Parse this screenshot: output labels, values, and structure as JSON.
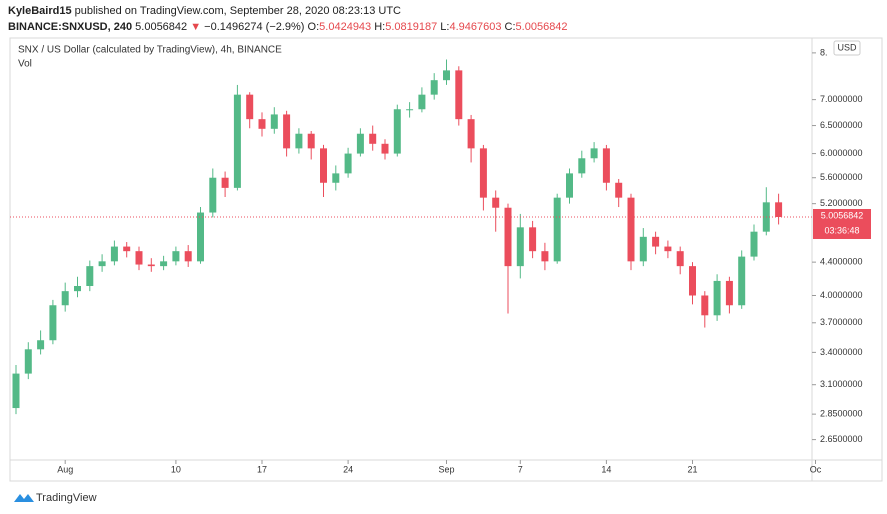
{
  "header": {
    "author": "KyleBaird15",
    "published": " published on TradingView.com, September 28, 2020 08:23:13 UTC",
    "symbol": "BINANCE:SNXUSD, 240",
    "last": "5.0056842",
    "arrow": "▼",
    "change": "−0.1496274 (−2.9%)",
    "ohlc": [
      {
        "label": "O:",
        "value": "5.0424943"
      },
      {
        "label": "H:",
        "value": "5.0819187"
      },
      {
        "label": "L:",
        "value": "4.9467603"
      },
      {
        "label": "C:",
        "value": "5.0056842"
      }
    ]
  },
  "chart_data": {
    "type": "candlestick",
    "title": "SNX / US Dollar (calculated by TradingView), 4h, BINANCE",
    "subtitle": "Vol",
    "currency": "USD",
    "countdown": "03:36:48",
    "log": true,
    "grid": false,
    "up_color": "#53b987",
    "down_color": "#eb4d5c",
    "categories": [
      null,
      null,
      null,
      null,
      "Aug",
      null,
      null,
      null,
      null,
      null,
      null,
      null,
      null,
      "10",
      null,
      null,
      null,
      null,
      null,
      null,
      "17",
      null,
      null,
      null,
      null,
      null,
      null,
      "24",
      null,
      null,
      null,
      null,
      null,
      null,
      null,
      "Sep",
      null,
      null,
      null,
      null,
      null,
      "7",
      null,
      null,
      null,
      null,
      null,
      null,
      "14",
      null,
      null,
      null,
      null,
      null,
      null,
      "21",
      null,
      null,
      null,
      null,
      null,
      null,
      null,
      null,
      null,
      "Oc"
    ],
    "open": [
      2.9,
      3.2,
      3.43,
      3.52,
      3.89,
      4.05,
      4.11,
      4.35,
      4.41,
      4.6,
      4.54,
      4.37,
      4.35,
      4.41,
      4.54,
      4.41,
      5.07,
      5.6,
      5.44,
      7.1,
      6.62,
      6.44,
      6.71,
      6.09,
      6.35,
      6.09,
      5.52,
      5.67,
      6.0,
      6.35,
      6.17,
      6.0,
      6.81,
      6.81,
      7.1,
      7.4,
      7.61,
      6.62,
      6.09,
      5.29,
      5.14,
      4.35,
      4.86,
      4.54,
      4.41,
      5.29,
      5.67,
      5.92,
      6.09,
      5.52,
      5.29,
      4.41,
      4.73,
      4.6,
      4.54,
      4.35,
      4.0,
      3.78,
      4.17,
      3.89,
      4.47,
      4.8,
      5.22,
      null,
      null,
      null
    ],
    "high": [
      3.28,
      3.5,
      3.62,
      3.95,
      4.15,
      4.22,
      4.42,
      4.5,
      4.68,
      4.66,
      4.6,
      4.45,
      4.48,
      4.6,
      4.62,
      5.15,
      5.75,
      5.7,
      7.3,
      7.15,
      6.75,
      6.85,
      6.78,
      6.45,
      6.4,
      6.15,
      5.8,
      6.1,
      6.45,
      6.5,
      6.25,
      6.9,
      6.95,
      7.25,
      7.55,
      7.85,
      7.7,
      6.7,
      6.15,
      5.4,
      5.2,
      5.05,
      4.95,
      4.65,
      5.35,
      5.75,
      6.05,
      6.2,
      6.15,
      5.58,
      5.35,
      4.85,
      4.8,
      4.68,
      4.6,
      4.4,
      4.05,
      4.25,
      4.22,
      4.55,
      4.9,
      5.45,
      5.35,
      null,
      null,
      null
    ],
    "low": [
      2.85,
      3.15,
      3.38,
      3.48,
      3.82,
      3.98,
      4.05,
      4.28,
      4.36,
      4.46,
      4.3,
      4.28,
      4.3,
      4.36,
      4.34,
      4.38,
      5.0,
      5.3,
      5.4,
      6.45,
      6.3,
      6.35,
      5.95,
      6.0,
      5.9,
      5.3,
      5.4,
      5.6,
      5.95,
      6.05,
      5.9,
      5.95,
      6.65,
      6.75,
      7.0,
      7.3,
      6.5,
      5.85,
      5.1,
      4.8,
      3.8,
      4.2,
      4.45,
      4.3,
      4.38,
      5.2,
      5.6,
      5.85,
      5.4,
      5.15,
      4.3,
      4.35,
      4.5,
      4.45,
      4.25,
      3.9,
      3.65,
      3.72,
      3.8,
      3.85,
      4.42,
      4.75,
      4.9,
      null,
      null,
      null
    ],
    "close": [
      3.2,
      3.43,
      3.52,
      3.89,
      4.05,
      4.11,
      4.35,
      4.41,
      4.6,
      4.54,
      4.37,
      4.35,
      4.41,
      4.54,
      4.41,
      5.07,
      5.6,
      5.44,
      7.1,
      6.62,
      6.44,
      6.71,
      6.09,
      6.35,
      6.09,
      5.52,
      5.67,
      6.0,
      6.35,
      6.17,
      6.0,
      6.81,
      6.81,
      7.1,
      7.4,
      7.61,
      6.62,
      6.09,
      5.29,
      5.14,
      4.35,
      4.86,
      4.54,
      4.41,
      5.29,
      5.67,
      5.92,
      6.09,
      5.52,
      5.29,
      4.41,
      4.73,
      4.6,
      4.54,
      4.35,
      4.0,
      3.78,
      4.17,
      3.89,
      4.47,
      4.8,
      5.22,
      5.0056842,
      null,
      null,
      null
    ],
    "ylim": [
      2.5,
      8.3
    ],
    "yticks": [
      {
        "value": 2.65,
        "label": "2.6500000"
      },
      {
        "value": 2.85,
        "label": "2.8500000"
      },
      {
        "value": 3.1,
        "label": "3.1000000"
      },
      {
        "value": 3.4,
        "label": "3.4000000"
      },
      {
        "value": 3.7,
        "label": "3.7000000"
      },
      {
        "value": 4,
        "label": "4.0000000"
      },
      {
        "value": 4.4,
        "label": "4.4000000"
      },
      {
        "value": 5.2,
        "label": "5.2000000"
      },
      {
        "value": 5.6,
        "label": "5.6000000"
      },
      {
        "value": 6,
        "label": "6.0000000"
      },
      {
        "value": 6.5,
        "label": "6.5000000"
      },
      {
        "value": 7,
        "label": "7.0000000"
      },
      {
        "value": 8,
        "label": "8."
      }
    ]
  },
  "footer": {
    "brand": "TradingView"
  }
}
